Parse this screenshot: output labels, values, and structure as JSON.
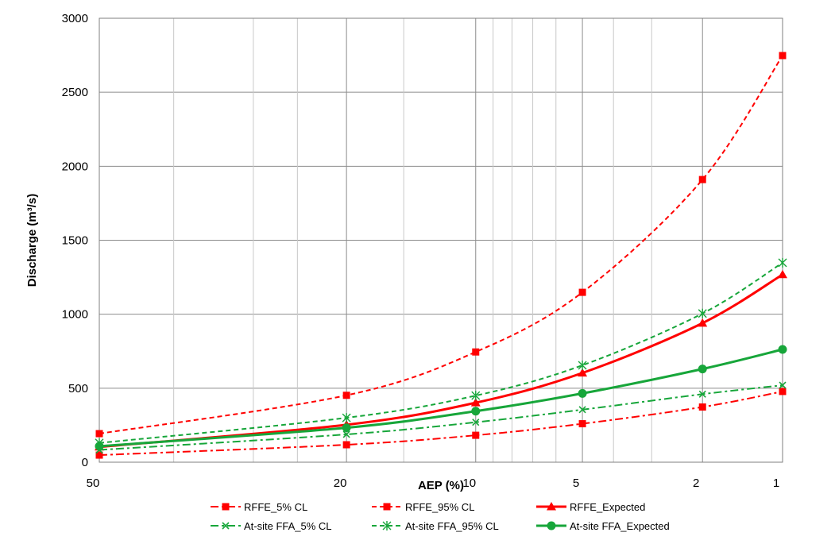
{
  "chart_data": {
    "type": "line",
    "xlabel": "AEP (%)",
    "ylabel": "Discharge (m³/s)",
    "x_scale": "probability (Gumbel-type, reversed)",
    "x": [
      50,
      20,
      10,
      5,
      2,
      1
    ],
    "x_ticks": [
      "50",
      "20",
      "10",
      "5",
      "2",
      "1"
    ],
    "ylim": [
      0,
      3000
    ],
    "y_ticks": [
      "0",
      "500",
      "1000",
      "1500",
      "2000",
      "2500",
      "3000"
    ],
    "grid": true,
    "legend_position": "bottom",
    "series": [
      {
        "name": "RFFE_5% CL",
        "values": [
          48,
          118,
          182,
          260,
          373,
          478
        ],
        "color": "#ff0000",
        "dash": "dashdot",
        "marker": "square",
        "width": 2
      },
      {
        "name": "RFFE_95% CL",
        "values": [
          193,
          452,
          745,
          1148,
          1910,
          2748
        ],
        "color": "#ff0000",
        "dash": "dash",
        "marker": "square",
        "width": 2
      },
      {
        "name": "RFFE_Expected",
        "values": [
          103,
          253,
          402,
          603,
          940,
          1268
        ],
        "color": "#ff0000",
        "dash": "solid",
        "marker": "triangle",
        "width": 3
      },
      {
        "name": "At-site FFA_5% CL",
        "values": [
          83,
          188,
          270,
          355,
          460,
          520
        ],
        "color": "#17a63a",
        "dash": "dashdot",
        "marker": "x",
        "width": 2
      },
      {
        "name": "At-site FFA_95% CL",
        "values": [
          130,
          300,
          450,
          655,
          1005,
          1348
        ],
        "color": "#17a63a",
        "dash": "dash",
        "marker": "star",
        "width": 2
      },
      {
        "name": "At-site FFA_Expected",
        "values": [
          108,
          233,
          345,
          465,
          630,
          762
        ],
        "color": "#17a63a",
        "dash": "solid",
        "marker": "circle",
        "width": 3
      }
    ]
  }
}
